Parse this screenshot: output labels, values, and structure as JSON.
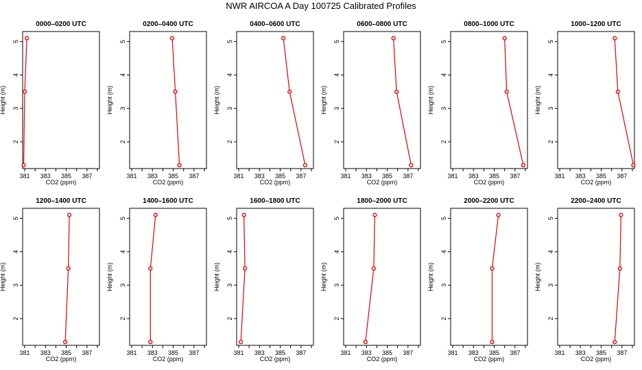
{
  "title": "NWR AIRCOA A  Day 100725  Calibrated Profiles",
  "colors": {
    "profile": "#dd0000",
    "axis": "#000000",
    "background": "#ffffff"
  },
  "chart_data": [
    {
      "type": "line",
      "title": "0000–0200 UTC",
      "xlabel": "CO2 (ppm)",
      "ylabel": "Height (m)",
      "xlim": [
        380.8,
        388.2
      ],
      "ylim": [
        1.2,
        5.3
      ],
      "xticks": [
        381,
        383,
        385,
        387
      ],
      "yticks": [
        2,
        3,
        4,
        5
      ],
      "x": [
        380.9,
        381.0,
        381.2
      ],
      "y": [
        1.3,
        3.5,
        5.1
      ]
    },
    {
      "type": "line",
      "title": "0200–0400 UTC",
      "xlabel": "CO2 (ppm)",
      "ylabel": "Height (m)",
      "xlim": [
        380.8,
        388.2
      ],
      "ylim": [
        1.2,
        5.3
      ],
      "xticks": [
        381,
        383,
        385,
        387
      ],
      "yticks": [
        2,
        3,
        4,
        5
      ],
      "x": [
        385.6,
        385.2,
        384.9
      ],
      "y": [
        1.3,
        3.5,
        5.1
      ]
    },
    {
      "type": "line",
      "title": "0400–0600 UTC",
      "xlabel": "CO2 (ppm)",
      "ylabel": "Height (m)",
      "xlim": [
        380.8,
        388.2
      ],
      "ylim": [
        1.2,
        5.3
      ],
      "xticks": [
        381,
        383,
        385,
        387
      ],
      "yticks": [
        2,
        3,
        4,
        5
      ],
      "x": [
        387.4,
        385.9,
        385.3
      ],
      "y": [
        1.3,
        3.5,
        5.1
      ]
    },
    {
      "type": "line",
      "title": "0600–0800 UTC",
      "xlabel": "CO2 (ppm)",
      "ylabel": "Height (m)",
      "xlim": [
        380.8,
        388.2
      ],
      "ylim": [
        1.2,
        5.3
      ],
      "xticks": [
        381,
        383,
        385,
        387
      ],
      "yticks": [
        2,
        3,
        4,
        5
      ],
      "x": [
        387.3,
        385.9,
        385.6
      ],
      "y": [
        1.3,
        3.5,
        5.1
      ]
    },
    {
      "type": "line",
      "title": "0800–1000 UTC",
      "xlabel": "CO2 (ppm)",
      "ylabel": "Height (m)",
      "xlim": [
        380.8,
        388.2
      ],
      "ylim": [
        1.2,
        5.3
      ],
      "xticks": [
        381,
        383,
        385,
        387
      ],
      "yticks": [
        2,
        3,
        4,
        5
      ],
      "x": [
        387.8,
        386.2,
        386.0
      ],
      "y": [
        1.3,
        3.5,
        5.1
      ]
    },
    {
      "type": "line",
      "title": "1000–1200 UTC",
      "xlabel": "CO2 (ppm)",
      "ylabel": "Height (m)",
      "xlim": [
        380.8,
        388.2
      ],
      "ylim": [
        1.2,
        5.3
      ],
      "xticks": [
        381,
        383,
        385,
        387
      ],
      "yticks": [
        2,
        3,
        4,
        5
      ],
      "x": [
        388.1,
        386.6,
        386.3
      ],
      "y": [
        1.3,
        3.5,
        5.1
      ]
    },
    {
      "type": "line",
      "title": "1200–1400 UTC",
      "xlabel": "CO2 (ppm)",
      "ylabel": "Height (m)",
      "xlim": [
        380.8,
        388.2
      ],
      "ylim": [
        1.2,
        5.3
      ],
      "xticks": [
        381,
        383,
        385,
        387
      ],
      "yticks": [
        2,
        3,
        4,
        5
      ],
      "x": [
        384.9,
        385.2,
        385.3
      ],
      "y": [
        1.3,
        3.5,
        5.1
      ]
    },
    {
      "type": "line",
      "title": "1400–1600 UTC",
      "xlabel": "CO2 (ppm)",
      "ylabel": "Height (m)",
      "xlim": [
        380.8,
        388.2
      ],
      "ylim": [
        1.2,
        5.3
      ],
      "xticks": [
        381,
        383,
        385,
        387
      ],
      "yticks": [
        2,
        3,
        4,
        5
      ],
      "x": [
        382.8,
        382.8,
        383.3
      ],
      "y": [
        1.3,
        3.5,
        5.1
      ]
    },
    {
      "type": "line",
      "title": "1600–1800 UTC",
      "xlabel": "CO2 (ppm)",
      "ylabel": "Height (m)",
      "xlim": [
        380.8,
        388.2
      ],
      "ylim": [
        1.2,
        5.3
      ],
      "xticks": [
        381,
        383,
        385,
        387
      ],
      "yticks": [
        2,
        3,
        4,
        5
      ],
      "x": [
        381.2,
        381.6,
        381.5
      ],
      "y": [
        1.3,
        3.5,
        5.1
      ]
    },
    {
      "type": "line",
      "title": "1800–2000 UTC",
      "xlabel": "CO2 (ppm)",
      "ylabel": "Height (m)",
      "xlim": [
        380.8,
        388.2
      ],
      "ylim": [
        1.2,
        5.3
      ],
      "xticks": [
        381,
        383,
        385,
        387
      ],
      "yticks": [
        2,
        3,
        4,
        5
      ],
      "x": [
        382.9,
        383.7,
        383.8
      ],
      "y": [
        1.3,
        3.5,
        5.1
      ]
    },
    {
      "type": "line",
      "title": "2000–2200 UTC",
      "xlabel": "CO2 (ppm)",
      "ylabel": "Height (m)",
      "xlim": [
        380.8,
        388.2
      ],
      "ylim": [
        1.2,
        5.3
      ],
      "xticks": [
        381,
        383,
        385,
        387
      ],
      "yticks": [
        2,
        3,
        4,
        5
      ],
      "x": [
        384.8,
        384.8,
        385.4
      ],
      "y": [
        1.3,
        3.5,
        5.1
      ]
    },
    {
      "type": "line",
      "title": "2200–2400 UTC",
      "xlabel": "CO2 (ppm)",
      "ylabel": "Height (m)",
      "xlim": [
        380.8,
        388.2
      ],
      "ylim": [
        1.2,
        5.3
      ],
      "xticks": [
        381,
        383,
        385,
        387
      ],
      "yticks": [
        2,
        3,
        4,
        5
      ],
      "x": [
        386.3,
        386.8,
        386.9
      ],
      "y": [
        1.3,
        3.5,
        5.1
      ]
    }
  ]
}
